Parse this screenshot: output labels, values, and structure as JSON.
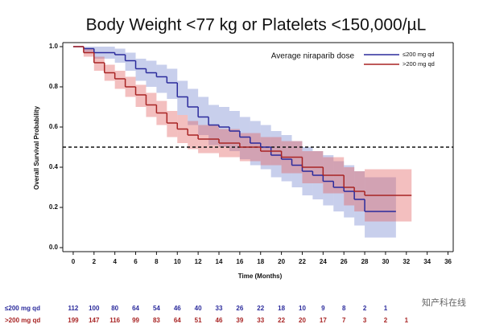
{
  "chart_data": {
    "type": "km",
    "title": "Body Weight <77 kg or Platelets <150,000/µL",
    "x_label": "Time (Months)",
    "y_label": "Overall Survival Probability",
    "legend_title": "Average niraparib dose",
    "xlim": [
      -1,
      36.5
    ],
    "ylim": [
      -0.02,
      1.02
    ],
    "xticks": [
      0,
      2,
      4,
      6,
      8,
      10,
      12,
      14,
      16,
      18,
      20,
      22,
      24,
      26,
      28,
      30,
      32,
      34,
      36
    ],
    "yticks": [
      {
        "value": 0,
        "label": "0.0"
      },
      0.2,
      0.4,
      0.6,
      0.8,
      {
        "value": 1,
        "label": "1.0"
      }
    ],
    "reference_line": 0.5,
    "series": [
      {
        "name": "≤200 mg qd",
        "color": "#2b2b9c",
        "band_color": "rgba(110,130,205,0.38)",
        "x": [
          0,
          1,
          2,
          4,
          5,
          6,
          7,
          8,
          9,
          10,
          11,
          12,
          13,
          14,
          15,
          16,
          17,
          18,
          19,
          20,
          21,
          22,
          23,
          24,
          25,
          26,
          27,
          28,
          31
        ],
        "values": [
          1.0,
          0.99,
          0.97,
          0.96,
          0.93,
          0.89,
          0.87,
          0.85,
          0.82,
          0.75,
          0.7,
          0.65,
          0.61,
          0.6,
          0.58,
          0.55,
          0.52,
          0.5,
          0.46,
          0.44,
          0.41,
          0.38,
          0.36,
          0.33,
          0.3,
          0.28,
          0.24,
          0.18,
          0.18
        ],
        "lower": [
          1.0,
          0.97,
          0.94,
          0.92,
          0.88,
          0.83,
          0.8,
          0.77,
          0.74,
          0.66,
          0.61,
          0.56,
          0.51,
          0.5,
          0.48,
          0.44,
          0.41,
          0.39,
          0.35,
          0.33,
          0.3,
          0.26,
          0.24,
          0.21,
          0.18,
          0.15,
          0.11,
          0.05,
          0.05
        ],
        "upper": [
          1.0,
          1.0,
          1.0,
          0.99,
          0.97,
          0.94,
          0.93,
          0.91,
          0.89,
          0.83,
          0.79,
          0.75,
          0.71,
          0.7,
          0.68,
          0.65,
          0.63,
          0.61,
          0.58,
          0.56,
          0.53,
          0.5,
          0.48,
          0.46,
          0.43,
          0.41,
          0.38,
          0.35,
          0.35
        ]
      },
      {
        "name": ">200 mg qd",
        "color": "#a82424",
        "band_color": "rgba(225,95,95,0.40)",
        "x": [
          0,
          1,
          2,
          3,
          4,
          5,
          6,
          7,
          8,
          9,
          10,
          11,
          12,
          14,
          16,
          18,
          20,
          22,
          24,
          26,
          27,
          28,
          32.5
        ],
        "values": [
          1.0,
          0.97,
          0.92,
          0.87,
          0.84,
          0.8,
          0.76,
          0.71,
          0.67,
          0.62,
          0.59,
          0.56,
          0.54,
          0.52,
          0.5,
          0.48,
          0.45,
          0.4,
          0.36,
          0.3,
          0.28,
          0.26,
          0.26
        ],
        "lower": [
          1.0,
          0.95,
          0.88,
          0.83,
          0.79,
          0.75,
          0.7,
          0.65,
          0.61,
          0.55,
          0.52,
          0.49,
          0.47,
          0.45,
          0.43,
          0.41,
          0.37,
          0.32,
          0.27,
          0.21,
          0.18,
          0.13,
          0.13
        ],
        "upper": [
          1.0,
          0.99,
          0.95,
          0.91,
          0.88,
          0.85,
          0.81,
          0.77,
          0.73,
          0.68,
          0.66,
          0.63,
          0.61,
          0.59,
          0.57,
          0.55,
          0.53,
          0.48,
          0.45,
          0.4,
          0.38,
          0.39,
          0.39
        ]
      }
    ],
    "risk_table": [
      {
        "name": "≤200 mg qd",
        "color": "#2b2b9c",
        "values": [
          112,
          100,
          80,
          64,
          54,
          46,
          40,
          33,
          26,
          22,
          18,
          10,
          9,
          8,
          2,
          1
        ]
      },
      {
        "name": ">200 mg qd",
        "color": "#a82424",
        "values": [
          199,
          147,
          116,
          99,
          83,
          64,
          51,
          46,
          39,
          33,
          22,
          20,
          17,
          7,
          3,
          2,
          1
        ]
      }
    ]
  },
  "watermark": "知产科在线"
}
